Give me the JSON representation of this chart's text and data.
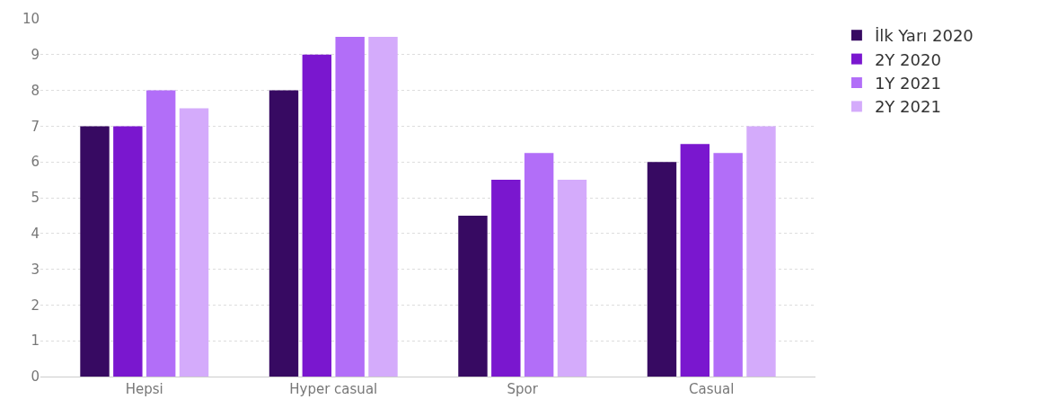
{
  "chart_data": {
    "type": "bar",
    "categories": [
      "Hepsi",
      "Hyper casual",
      "Spor",
      "Casual"
    ],
    "series": [
      {
        "name": "İlk Yarı 2020",
        "color": "#370a62",
        "values": [
          7,
          8,
          4.5,
          6
        ]
      },
      {
        "name": "2Y 2020",
        "color": "#7a17cf",
        "values": [
          7,
          9,
          5.5,
          6.5
        ]
      },
      {
        "name": "1Y 2021",
        "color": "#b26ef8",
        "values": [
          8,
          9.5,
          6.25,
          6.25
        ]
      },
      {
        "name": "2Y 2021",
        "color": "#d4abfb",
        "values": [
          7.5,
          9.5,
          5.5,
          7
        ]
      }
    ],
    "ylim": [
      0,
      10
    ],
    "yticks": [
      0,
      1,
      2,
      3,
      4,
      5,
      6,
      7,
      8,
      9,
      10
    ],
    "grid": "y",
    "legend": "top right"
  }
}
